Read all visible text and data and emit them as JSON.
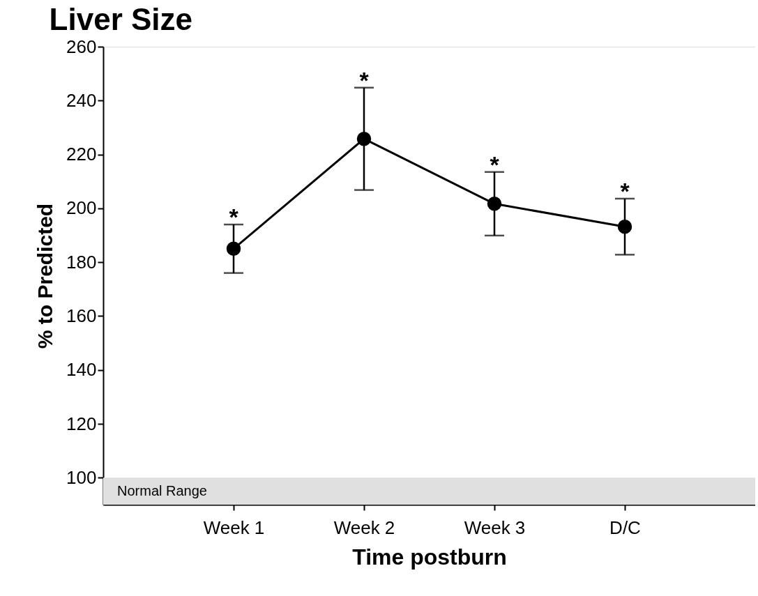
{
  "chart_data": {
    "type": "line",
    "title": "Liver Size",
    "xlabel": "Time postburn",
    "ylabel": "% to Predicted",
    "categories": [
      "Week 1",
      "Week 2",
      "Week 3",
      "D/C"
    ],
    "series": [
      {
        "color": "#000000",
        "values": [
          185,
          225.8,
          201.7,
          193.2
        ],
        "errors": [
          9,
          19,
          11.8,
          10.4
        ]
      }
    ],
    "ylim": [
      90,
      260
    ],
    "yticks": [
      100,
      120,
      140,
      160,
      180,
      200,
      220,
      240,
      260
    ],
    "bands": [
      {
        "axis": "y",
        "from": 90,
        "to": 100,
        "label": "Normal Range",
        "color": "#e0e0e0"
      }
    ],
    "annotations": [
      {
        "text": "*",
        "x": "Week 1",
        "y": 194
      },
      {
        "text": "*",
        "x": "Week 2",
        "y": 244.8
      },
      {
        "text": "*",
        "x": "Week 3",
        "y": 213.5
      },
      {
        "text": "*",
        "x": "D/C",
        "y": 203.6
      }
    ],
    "grid": false,
    "marker": "circle",
    "line_style": "solid"
  }
}
